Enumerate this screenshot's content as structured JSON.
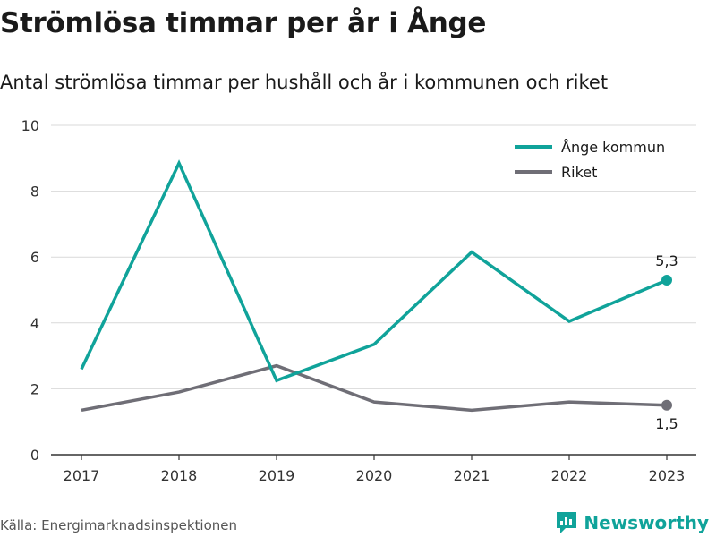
{
  "title": "Strömlösa timmar per år i Ånge",
  "subtitle": "Antal strömlösa timmar per hushåll och år i kommunen och riket",
  "source": "Källa: Energimarknadsinspektionen",
  "brand": "Newsworthy",
  "colors": {
    "ange": "#10a39a",
    "riket": "#6f6e76",
    "grid": "#d9d9d9",
    "axis": "#333333"
  },
  "chart_data": {
    "type": "line",
    "title": "",
    "xlabel": "",
    "ylabel": "",
    "categories": [
      "2017",
      "2018",
      "2019",
      "2020",
      "2021",
      "2022",
      "2023"
    ],
    "ylim": [
      0,
      10
    ],
    "yticks": [
      0,
      2,
      4,
      6,
      8,
      10
    ],
    "grid": true,
    "legend_position": "top-right",
    "series": [
      {
        "name": "Ånge kommun",
        "values": [
          2.6,
          8.85,
          2.25,
          3.35,
          6.15,
          4.05,
          5.3
        ],
        "end_label": "5,3"
      },
      {
        "name": "Riket",
        "values": [
          1.35,
          1.9,
          2.7,
          1.6,
          1.35,
          1.6,
          1.5
        ],
        "end_label": "1,5"
      }
    ]
  }
}
